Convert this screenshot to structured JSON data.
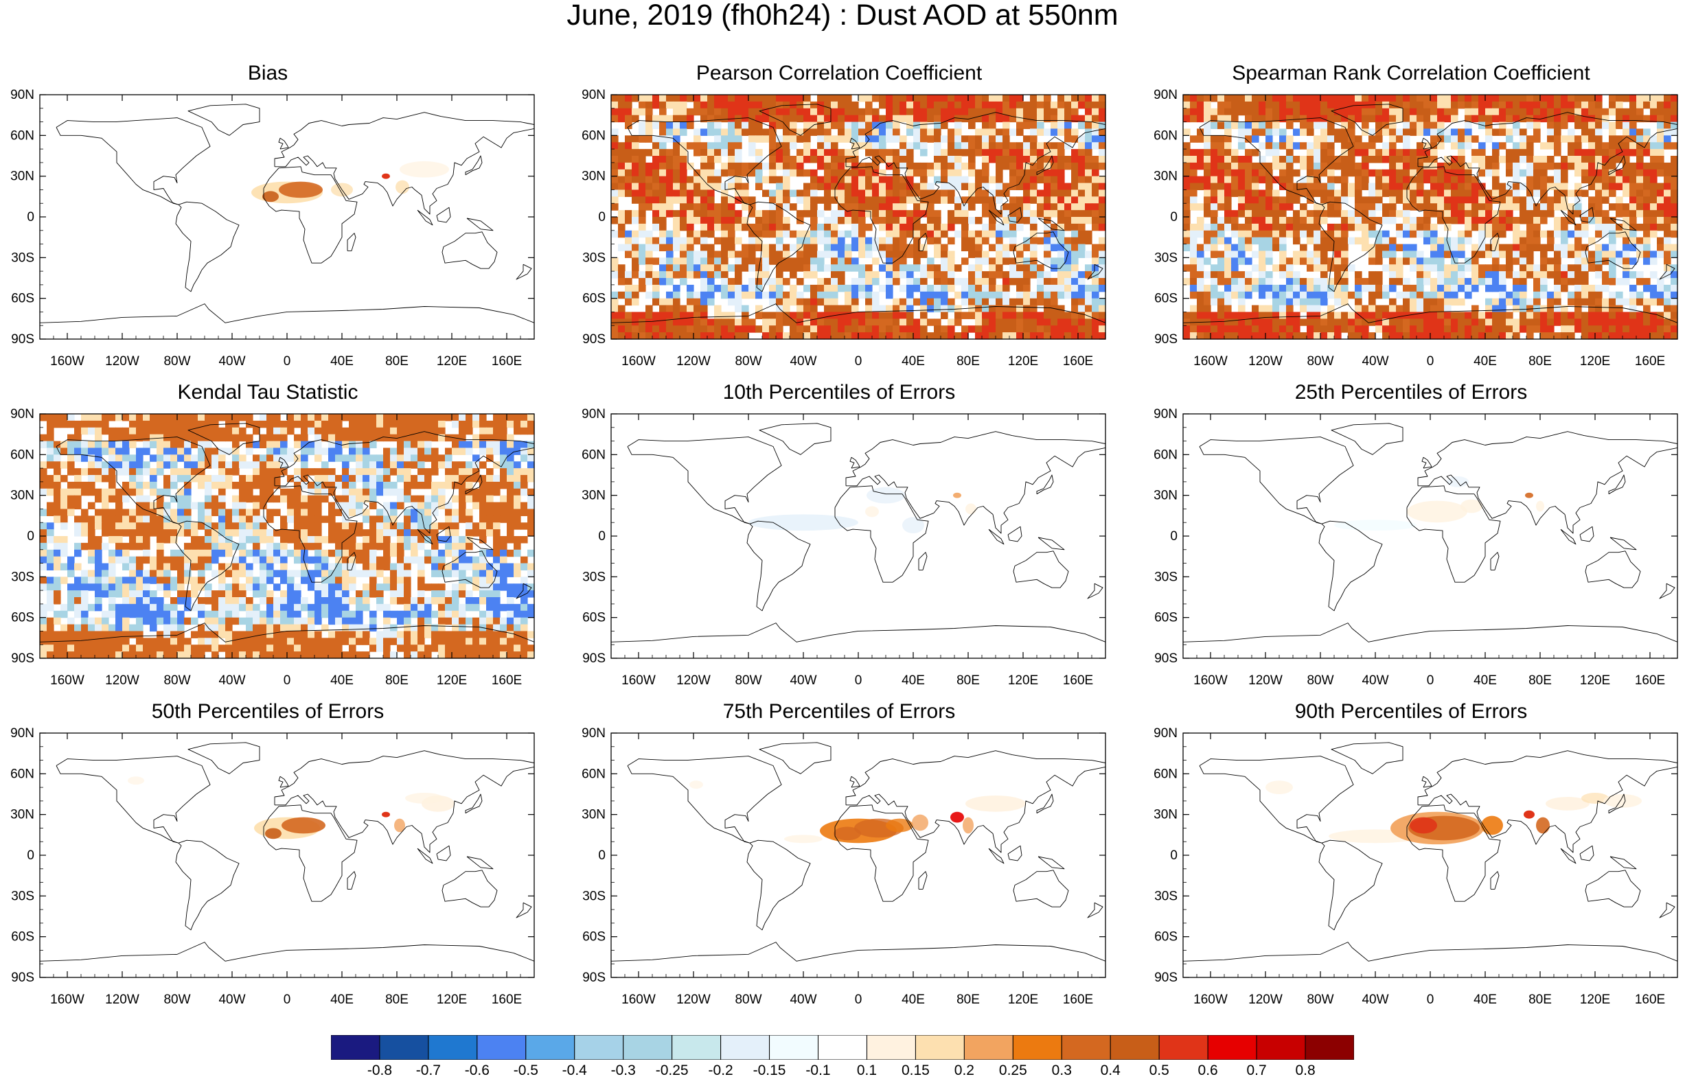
{
  "title": "June, 2019 (fh0h24) : Dust AOD at 550nm",
  "panels": [
    {
      "id": "bias",
      "title": "Bias",
      "pattern": "bias"
    },
    {
      "id": "pearson",
      "title": "Pearson Correlation Coefficient",
      "pattern": "corr"
    },
    {
      "id": "spearman",
      "title": "Spearman Rank Correlation Coefficient",
      "pattern": "corr"
    },
    {
      "id": "kendall",
      "title": "Kendal Tau Statistic",
      "pattern": "kendall"
    },
    {
      "id": "p10",
      "title": "10th Percentiles of Errors",
      "pattern": "p10"
    },
    {
      "id": "p25",
      "title": "25th Percentiles of Errors",
      "pattern": "p25"
    },
    {
      "id": "p50",
      "title": "50th Percentiles of Errors",
      "pattern": "p50"
    },
    {
      "id": "p75",
      "title": "75th Percentiles of Errors",
      "pattern": "p75"
    },
    {
      "id": "p90",
      "title": "90th Percentiles of Errors",
      "pattern": "p90"
    }
  ],
  "lat_labels": [
    "90N",
    "60N",
    "30N",
    "0",
    "30S",
    "60S",
    "90S"
  ],
  "lon_labels": [
    "160W",
    "120W",
    "80W",
    "40W",
    "0",
    "40E",
    "80E",
    "120E",
    "160E"
  ],
  "colorbar": {
    "labels": [
      "-0.8",
      "-0.7",
      "-0.6",
      "-0.5",
      "-0.4",
      "-0.3",
      "-0.25",
      "-0.2",
      "-0.15",
      "-0.1",
      "0.1",
      "0.15",
      "0.2",
      "0.25",
      "0.3",
      "0.4",
      "0.5",
      "0.6",
      "0.7",
      "0.8"
    ],
    "colors": [
      "#1a1a80",
      "#1650a0",
      "#1f78d0",
      "#4c82f2",
      "#5aa8e8",
      "#a6d2e8",
      "#a8d4e4",
      "#c8e8ec",
      "#e4f0fa",
      "#f2fcff",
      "#ffffff",
      "#fff2e0",
      "#fde0b0",
      "#f2a460",
      "#ec7a10",
      "#d46820",
      "#c85e18",
      "#e03418",
      "#e60000",
      "#c80000",
      "#8c0000"
    ]
  }
}
